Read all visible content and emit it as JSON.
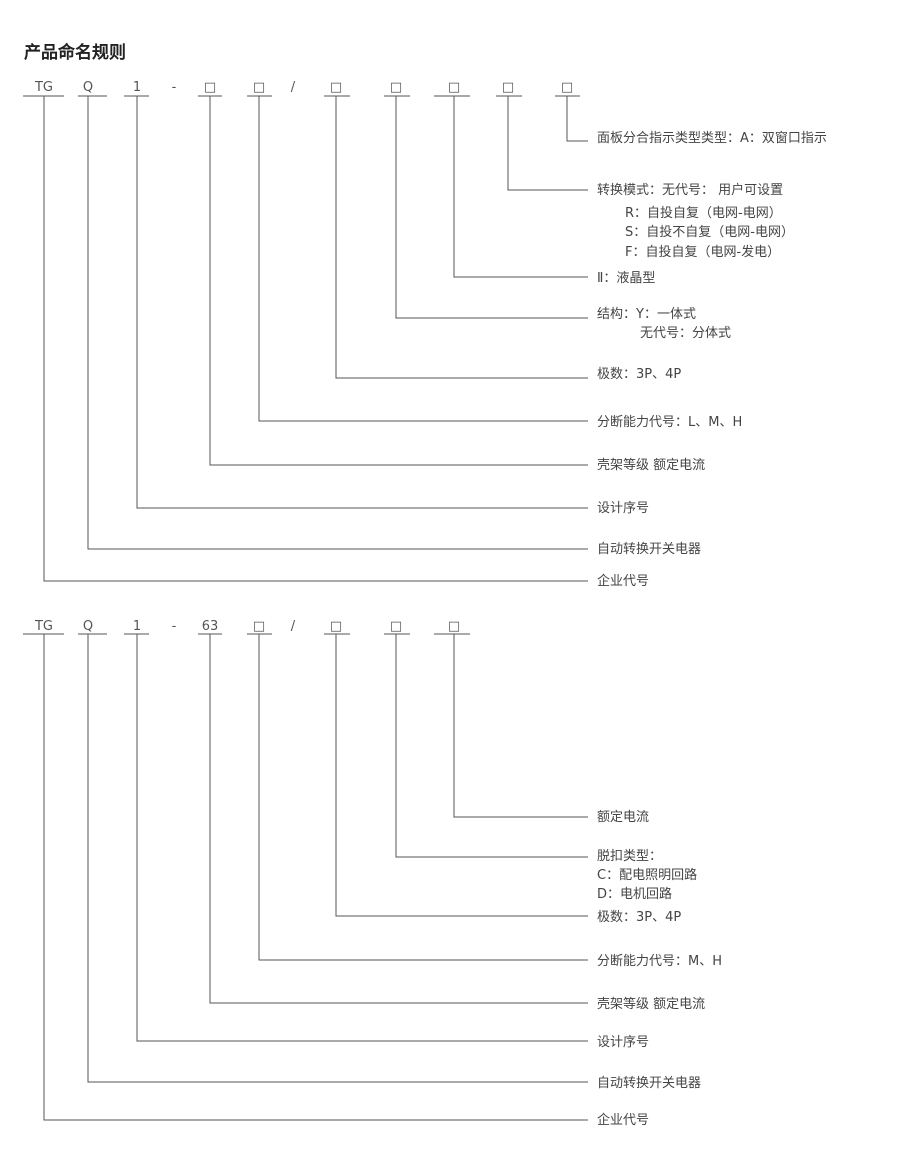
{
  "title": "产品命名规则",
  "diagrams": [
    {
      "codes": [
        "TG",
        "Q",
        "1",
        "-",
        "□",
        "□",
        "/",
        "□",
        "□",
        "□",
        "□",
        "□"
      ],
      "entries": [
        {
          "code_index": 11,
          "lines": [
            "面板分合指示类型类型：A：双窗口指示"
          ]
        },
        {
          "code_index": 10,
          "lines": [
            "转换模式：无代号： 用户可设置",
            "R：自投自复（电网-电网）",
            "S：自投不自复（电网-电网）",
            "F：自投自复（电网-发电）"
          ]
        },
        {
          "code_index": 9,
          "lines": [
            "Ⅱ：液晶型"
          ]
        },
        {
          "code_index": 8,
          "lines": [
            "结构：Y：一体式",
            "无代号：分体式"
          ]
        },
        {
          "code_index": 7,
          "lines": [
            "极数：3P、4P"
          ]
        },
        {
          "code_index": 5,
          "lines": [
            "分断能力代号：L、M、H"
          ]
        },
        {
          "code_index": 4,
          "lines": [
            "壳架等级 额定电流"
          ]
        },
        {
          "code_index": 2,
          "lines": [
            "设计序号"
          ]
        },
        {
          "code_index": 1,
          "lines": [
            "自动转换开关电器"
          ]
        },
        {
          "code_index": 0,
          "lines": [
            "企业代号"
          ]
        }
      ]
    },
    {
      "codes": [
        "TG",
        "Q",
        "1",
        "-",
        "63",
        "□",
        "/",
        "□",
        "□",
        "□"
      ],
      "entries": [
        {
          "code_index": 9,
          "lines": [
            "额定电流"
          ]
        },
        {
          "code_index": 8,
          "lines": [
            "脱扣类型：",
            "C：配电照明回路",
            "D：电机回路"
          ]
        },
        {
          "code_index": 7,
          "lines": [
            "极数：3P、4P"
          ]
        },
        {
          "code_index": 5,
          "lines": [
            "分断能力代号：M、H"
          ]
        },
        {
          "code_index": 4,
          "lines": [
            "壳架等级 额定电流"
          ]
        },
        {
          "code_index": 2,
          "lines": [
            "设计序号"
          ]
        },
        {
          "code_index": 1,
          "lines": [
            "自动转换开关电器"
          ]
        },
        {
          "code_index": 0,
          "lines": [
            "企业代号"
          ]
        }
      ]
    }
  ]
}
